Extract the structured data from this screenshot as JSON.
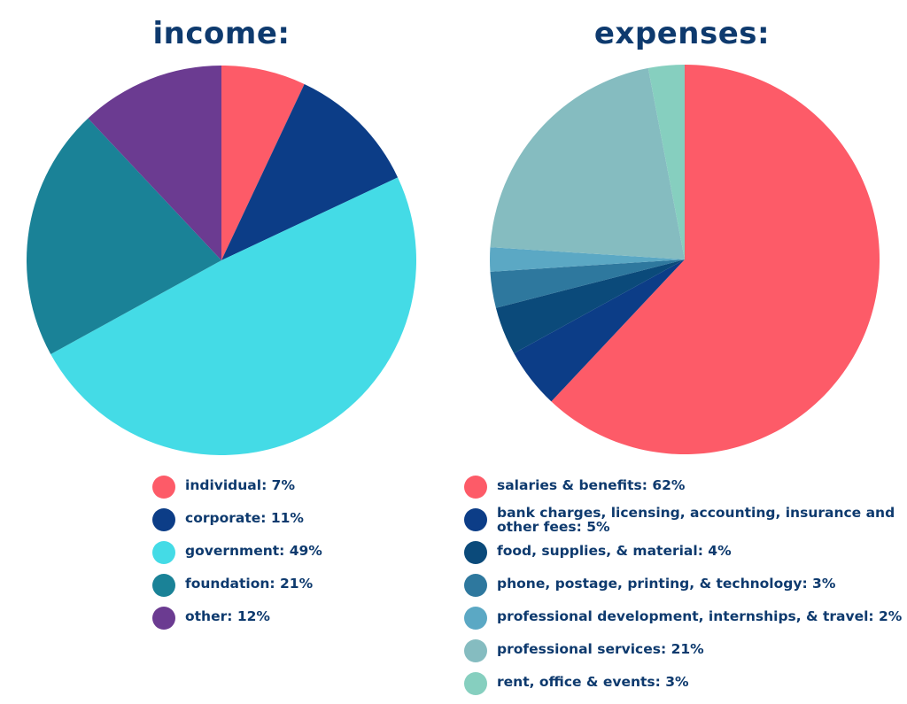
{
  "chart_data": [
    {
      "type": "pie",
      "title": "income:",
      "slices": [
        {
          "label": "individual: 7%",
          "value": 7,
          "color": "#fd5b68"
        },
        {
          "label": "corporate: 11%",
          "value": 11,
          "color": "#0c3d87"
        },
        {
          "label": "government: 49%",
          "value": 49,
          "color": "#44dbe6"
        },
        {
          "label": "foundation: 21%",
          "value": 21,
          "color": "#1a8297"
        },
        {
          "label": "other: 12%",
          "value": 12,
          "color": "#6b3b91"
        }
      ]
    },
    {
      "type": "pie",
      "title": "expenses:",
      "slices": [
        {
          "label": "salaries & benefits: 62%",
          "value": 62,
          "color": "#fd5b68"
        },
        {
          "label": "bank charges, licensing, accounting, insurance and other fees: 5%",
          "value": 5,
          "color": "#0c3d87"
        },
        {
          "label": "food, supplies, & material: 4%",
          "value": 4,
          "color": "#0b4a7a"
        },
        {
          "label": "phone, postage, printing, & technology: 3%",
          "value": 3,
          "color": "#2e789e"
        },
        {
          "label": "professional development, internships, & travel: 2%",
          "value": 2,
          "color": "#5ba8c4"
        },
        {
          "label": "professional services: 21%",
          "value": 21,
          "color": "#85bcc0"
        },
        {
          "label": "rent, office & events: 3%",
          "value": 3,
          "color": "#86cfbf"
        }
      ]
    }
  ]
}
